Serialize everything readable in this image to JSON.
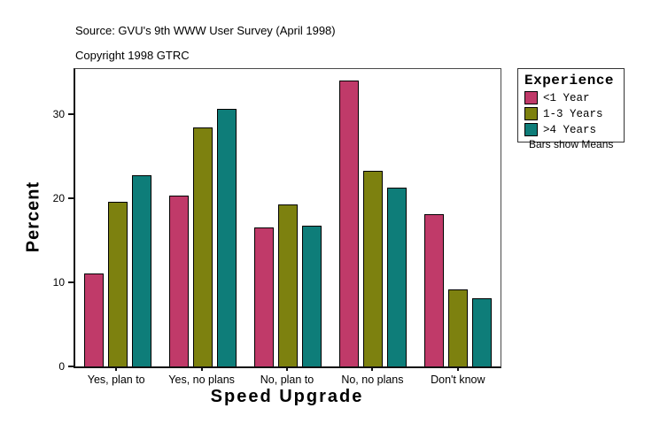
{
  "header": {
    "source": "Source: GVU's 9th WWW User Survey (April 1998)",
    "copyright": "Copyright 1998 GTRC"
  },
  "chart_data": {
    "type": "bar",
    "title": "",
    "xlabel": "Speed Upgrade",
    "ylabel": "Percent",
    "categories": [
      "Yes, plan to",
      "Yes, no plans",
      "No, plan to",
      "No, no plans",
      "Don't know"
    ],
    "series": [
      {
        "name": "<1 Year",
        "color": "#c03a69",
        "values": [
          11.1,
          20.3,
          16.5,
          34.0,
          18.1
        ]
      },
      {
        "name": "1-3 Years",
        "color": "#7d810f",
        "values": [
          19.6,
          28.5,
          19.3,
          23.3,
          9.2
        ]
      },
      {
        "name": ">4 Years",
        "color": "#0e7d79",
        "values": [
          22.8,
          30.7,
          16.8,
          21.3,
          8.1
        ]
      }
    ],
    "ylim": [
      0,
      35.4
    ],
    "yticks": [
      0,
      10,
      20,
      30
    ],
    "grid": "off",
    "legend": {
      "title": "Experience",
      "position": "right",
      "note": "Bars show Means"
    }
  }
}
